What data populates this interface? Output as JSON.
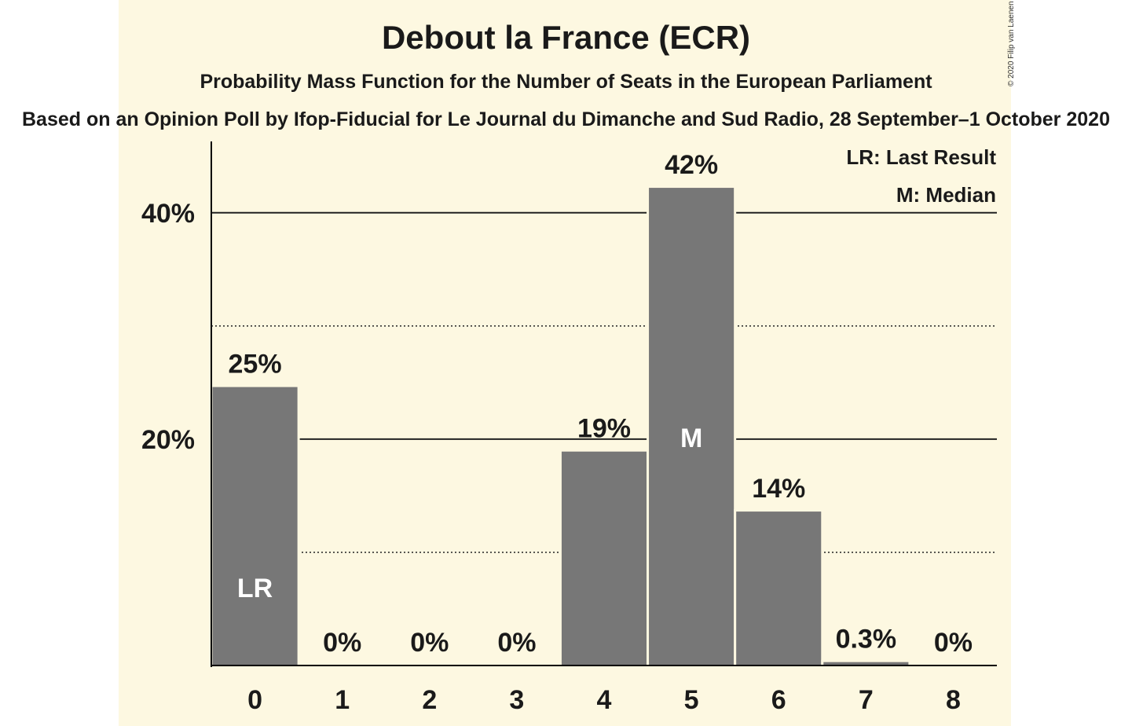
{
  "chart_data": {
    "type": "bar",
    "title": "Debout la France (ECR)",
    "subtitle": "Probability Mass Function for the Number of Seats in the European Parliament",
    "source": "Based on an Opinion Poll by Ifop-Fiducial for Le Journal du Dimanche and Sud Radio, 28 September–1 October 2020",
    "copyright": "© 2020 Filip van Laenen",
    "categories": [
      "0",
      "1",
      "2",
      "3",
      "4",
      "5",
      "6",
      "7",
      "8"
    ],
    "values": [
      24.6,
      0,
      0,
      0,
      18.9,
      42.2,
      13.6,
      0.3,
      0
    ],
    "value_labels": [
      "25%",
      "0%",
      "0%",
      "0%",
      "19%",
      "42%",
      "14%",
      "0.3%",
      "0%"
    ],
    "bar_markers": [
      {
        "category": "0",
        "label": "LR"
      },
      {
        "category": "5",
        "label": "M"
      }
    ],
    "legend": [
      "LR: Last Result",
      "M: Median"
    ],
    "legend_position": "top-right",
    "yticks": [
      {
        "value": 20,
        "label": "20%"
      },
      {
        "value": 40,
        "label": "40%"
      }
    ],
    "dotted_gridlines": [
      10,
      30
    ],
    "ylim": [
      0,
      46.3
    ],
    "xlabel": "",
    "ylabel": "",
    "colors": {
      "bar": "#777777",
      "background": "#fdf8e1",
      "text": "#1a1a1a",
      "marker_text": "#ffffff"
    }
  }
}
